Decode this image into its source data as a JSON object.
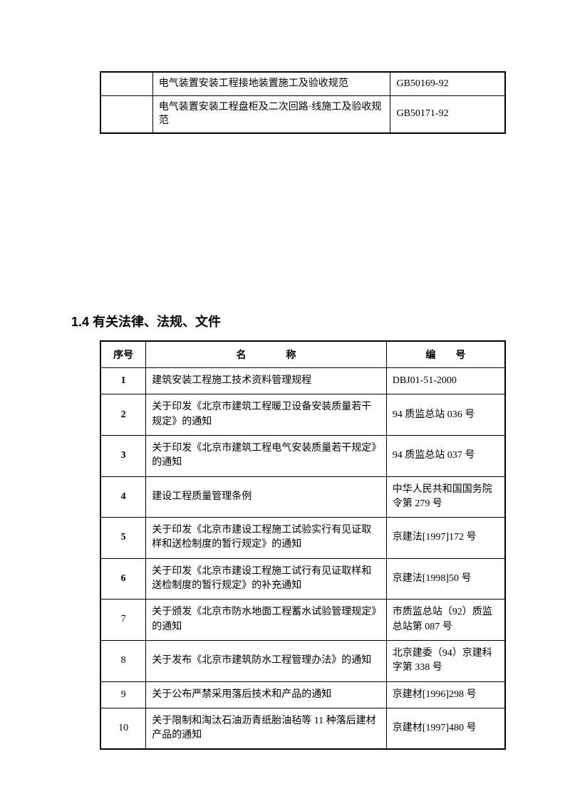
{
  "table1": {
    "rows": [
      {
        "c1": "",
        "c2": "电气装置安装工程接地装置施工及验收规范",
        "c3": "GB50169-92"
      },
      {
        "c1": "",
        "c2": "电气装置安装工程盘柜及二次回路·线施工及验收规范",
        "c3": "GB50171-92"
      }
    ]
  },
  "heading": "1.4  有关法律、法规、文件",
  "table2": {
    "headers": {
      "seq": "序号",
      "name": "名　　　　称",
      "code": "编　　号"
    },
    "rows": [
      {
        "seq": "1",
        "seq_bold": true,
        "name": "建筑安装工程施工技术资料管理规程",
        "code": "DBJ01-51-2000"
      },
      {
        "seq": "2",
        "seq_bold": true,
        "name": "关于印发《北京市建筑工程暖卫设备安装质量若干规定》的通知",
        "code": "94 质监总站 036 号"
      },
      {
        "seq": "3",
        "seq_bold": true,
        "name": "关于印发《北京市建筑工程电气安装质量若干规定》的通知",
        "code": "94 质监总站 037 号"
      },
      {
        "seq": "4",
        "seq_bold": true,
        "name": "建设工程质量管理条例",
        "code": "中华人民共和国国务院令第 279 号"
      },
      {
        "seq": "5",
        "seq_bold": true,
        "name": "关于印发《北京市建设工程施工试验实行有见证取样和送检制度的暂行规定》的通知",
        "code": "京建法[1997]172 号"
      },
      {
        "seq": "6",
        "seq_bold": true,
        "name": "关于印发《北京市建设工程施工试行有见证取样和送检制度的暂行规定》的补充通知",
        "code": "京建法[1998]50 号"
      },
      {
        "seq": "7",
        "seq_bold": false,
        "name": "关于颁发《北京市防水地面工程蓄水试验管理规定》的通知",
        "code": "市质监总站（92）质监总站第 087 号"
      },
      {
        "seq": "8",
        "seq_bold": false,
        "name": "关于发布《北京市建筑防水工程管理办法》的通知",
        "code": "北京建委（94）京建科字第 338 号"
      },
      {
        "seq": "9",
        "seq_bold": false,
        "name": "关于公布严禁采用落后技术和产品的通知",
        "code": "京建材[1996]298 号"
      },
      {
        "seq": "10",
        "seq_bold": false,
        "name": "关于限制和淘汰石油沥青纸胎油毡等 11 种落后建材产品的通知",
        "code": "京建材[1997]480 号"
      }
    ]
  }
}
